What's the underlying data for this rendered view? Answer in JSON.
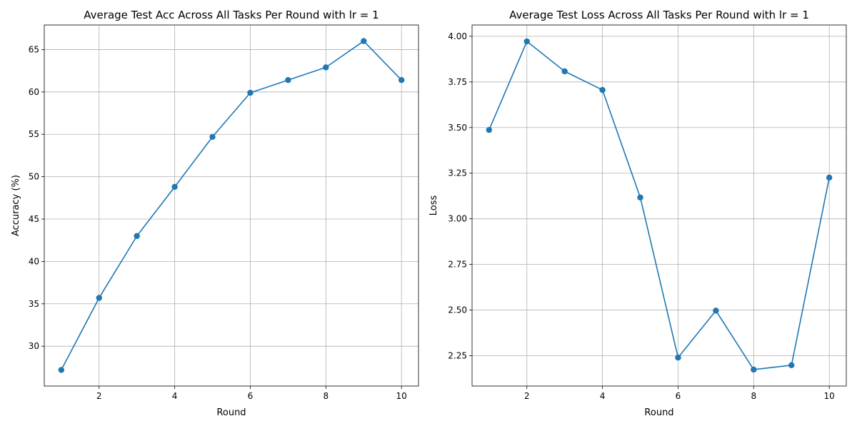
{
  "chart_data": [
    {
      "type": "line",
      "title": "Average Test Acc Across All Tasks Per Round with lr = 1",
      "xlabel": "Round",
      "ylabel": "Accuracy (%)",
      "x": [
        1,
        2,
        3,
        4,
        5,
        6,
        7,
        8,
        9,
        10
      ],
      "series": [
        {
          "values": [
            27.2,
            35.7,
            43.0,
            48.8,
            54.7,
            59.9,
            61.4,
            62.9,
            66.0,
            61.4
          ]
        }
      ],
      "xlim": [
        0.55,
        10.45
      ],
      "ylim": [
        25.3,
        67.9
      ],
      "xticks": [
        2,
        4,
        6,
        8,
        10
      ],
      "yticks": [
        30,
        35,
        40,
        45,
        50,
        55,
        60,
        65
      ],
      "ytick_labels": [
        "30",
        "35",
        "40",
        "45",
        "50",
        "55",
        "60",
        "65"
      ],
      "grid": true,
      "color": "#1f77b4",
      "marker": "circle"
    },
    {
      "type": "line",
      "title": "Average Test Loss Across All Tasks Per Round with lr = 1",
      "xlabel": "Round",
      "ylabel": "Loss",
      "x": [
        1,
        2,
        3,
        4,
        5,
        6,
        7,
        8,
        9,
        10
      ],
      "series": [
        {
          "values": [
            3.487,
            3.972,
            3.808,
            3.706,
            3.117,
            2.24,
            2.497,
            2.174,
            2.198,
            3.226
          ]
        }
      ],
      "xlim": [
        0.55,
        10.45
      ],
      "ylim": [
        2.084,
        4.062
      ],
      "xticks": [
        2,
        4,
        6,
        8,
        10
      ],
      "yticks": [
        2.25,
        2.5,
        2.75,
        3.0,
        3.25,
        3.5,
        3.75,
        4.0
      ],
      "ytick_labels": [
        "2.25",
        "2.50",
        "2.75",
        "3.00",
        "3.25",
        "3.50",
        "3.75",
        "4.00"
      ],
      "grid": true,
      "color": "#1f77b4",
      "marker": "circle"
    }
  ]
}
